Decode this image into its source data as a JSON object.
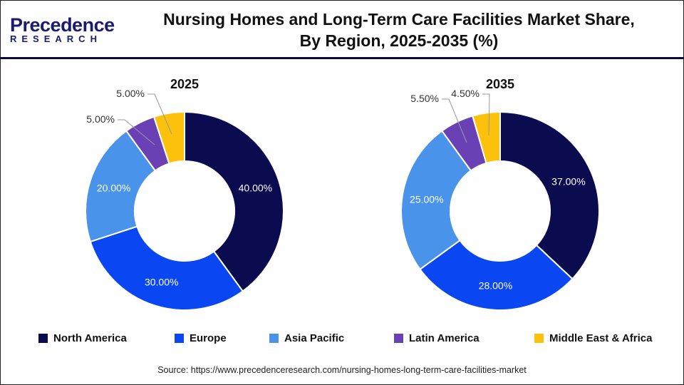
{
  "header": {
    "logo_line1": "Precedence",
    "logo_line2": "RESEARCH",
    "title_line1": "Nursing Homes and Long-Term Care Facilities Market Share,",
    "title_line2": "By Region, 2025-2035 (%)"
  },
  "chart_data": [
    {
      "type": "pie",
      "donut": true,
      "title": "2025",
      "categories": [
        "North America",
        "Europe",
        "Asia Pacific",
        "Latin America",
        "Middle East & Africa"
      ],
      "values": [
        40,
        30,
        20,
        5,
        5
      ],
      "labels": [
        "40.00%",
        "30.00%",
        "20.00%",
        "5.00%",
        "5.00%"
      ]
    },
    {
      "type": "pie",
      "donut": true,
      "title": "2035",
      "categories": [
        "North America",
        "Europe",
        "Asia Pacific",
        "Latin America",
        "Middle East & Africa"
      ],
      "values": [
        37,
        28,
        25,
        5.5,
        4.5
      ],
      "labels": [
        "37.00%",
        "28.00%",
        "25.00%",
        "5.50%",
        "4.50%"
      ]
    }
  ],
  "colors": [
    "#0b0b4f",
    "#0a47f2",
    "#4a93ea",
    "#6a41b4",
    "#fcc10a"
  ],
  "legend": {
    "placement": "bottom",
    "items": [
      "North America",
      "Europe",
      "Asia Pacific",
      "Latin America",
      "Middle East & Africa"
    ]
  },
  "source": "Source: https://www.precedenceresearch.com/nursing-homes-long-term-care-facilities-market"
}
